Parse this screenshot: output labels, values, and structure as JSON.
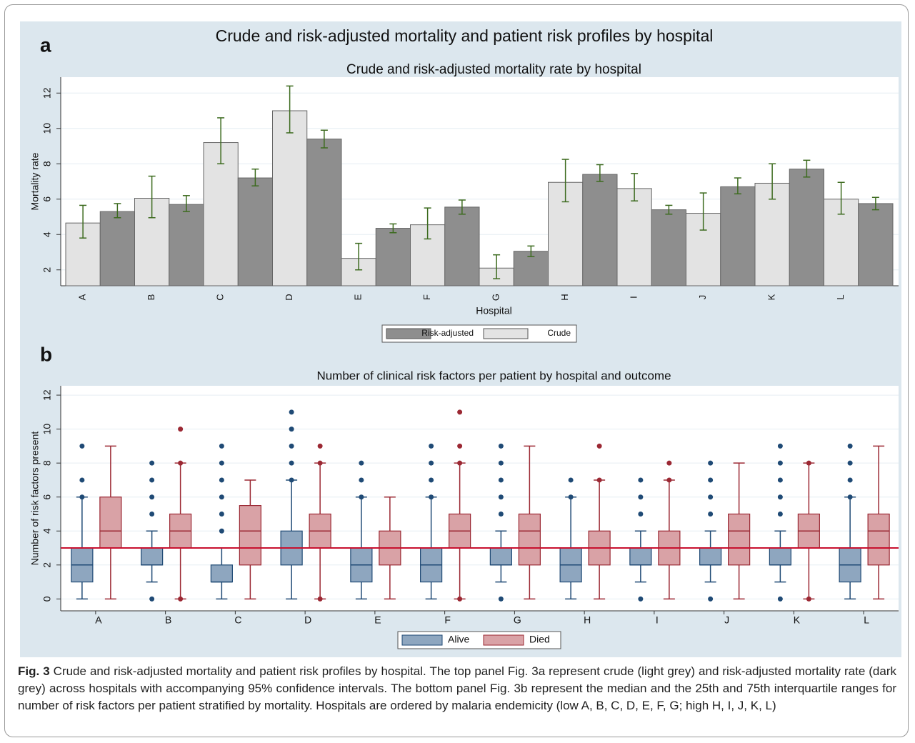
{
  "title": "Crude and risk-adjusted mortality and patient risk profiles by hospital",
  "chart_data": [
    {
      "type": "bar",
      "panel_label": "a",
      "title": "Crude and risk-adjusted mortality rate by hospital",
      "x_label": "Hospital",
      "y_label": "Mortality rate",
      "categories": [
        "A",
        "B",
        "C",
        "D",
        "E",
        "F",
        "G",
        "H",
        "I",
        "J",
        "K",
        "L"
      ],
      "series": [
        {
          "name": "Crude",
          "color": "#e3e3e3",
          "values": [
            4.65,
            6.05,
            9.2,
            11.0,
            2.65,
            4.55,
            2.1,
            6.95,
            6.6,
            5.2,
            6.9,
            6.0
          ],
          "lower": [
            3.8,
            4.95,
            8.0,
            9.75,
            2.0,
            3.75,
            1.5,
            5.85,
            5.9,
            4.25,
            6.0,
            5.15
          ],
          "upper": [
            5.65,
            7.3,
            10.6,
            12.4,
            3.5,
            5.5,
            2.85,
            8.25,
            7.45,
            6.35,
            8.0,
            6.95
          ]
        },
        {
          "name": "Risk-adjusted",
          "color": "#8e8e8e",
          "values": [
            5.3,
            5.7,
            7.2,
            9.4,
            4.35,
            5.55,
            3.05,
            7.4,
            5.4,
            6.7,
            7.7,
            5.75
          ],
          "lower": [
            4.95,
            5.3,
            6.75,
            8.9,
            4.1,
            5.15,
            2.75,
            7.0,
            5.15,
            6.3,
            7.25,
            5.4
          ],
          "upper": [
            5.75,
            6.2,
            7.7,
            9.9,
            4.6,
            5.95,
            3.35,
            7.95,
            5.65,
            7.2,
            8.2,
            6.1
          ]
        }
      ],
      "error_color": "#3d6b1f",
      "ylim": [
        1.1,
        12.9
      ],
      "yticks": [
        2,
        4,
        6,
        8,
        10,
        12
      ],
      "grid": true
    },
    {
      "type": "box",
      "panel_label": "b",
      "title": "Number of clinical risk factors per patient by hospital and outcome",
      "y_label": "Number of risk factors present",
      "categories": [
        "A",
        "B",
        "C",
        "D",
        "E",
        "F",
        "G",
        "H",
        "I",
        "J",
        "K",
        "L"
      ],
      "series": [
        {
          "name": "Alive",
          "color": "#8ea6bf",
          "edge_color": "#1f4a75",
          "whisker_low": [
            0,
            1,
            0,
            0,
            0,
            0,
            1,
            0,
            1,
            1,
            1,
            0
          ],
          "q1": [
            1,
            2,
            1,
            2,
            1,
            1,
            2,
            1,
            2,
            2,
            2,
            1
          ],
          "median": [
            2,
            2,
            1,
            3,
            2,
            2,
            2,
            2,
            2,
            2,
            2,
            2
          ],
          "q3": [
            3,
            3,
            2,
            4,
            3,
            3,
            3,
            3,
            3,
            3,
            3,
            3
          ],
          "whisker_high": [
            6,
            4,
            3,
            7,
            6,
            6,
            4,
            6,
            4,
            4,
            4,
            6
          ],
          "outliers": [
            [
              6,
              7,
              9
            ],
            [
              0,
              5,
              6,
              7,
              8
            ],
            [
              4,
              5,
              6,
              7,
              8,
              9
            ],
            [
              7,
              8,
              9,
              10,
              11
            ],
            [
              6,
              7,
              8
            ],
            [
              6,
              7,
              8,
              9
            ],
            [
              0,
              5,
              6,
              7,
              8,
              9
            ],
            [
              6,
              7
            ],
            [
              0,
              5,
              6,
              7
            ],
            [
              0,
              5,
              6,
              7,
              8
            ],
            [
              0,
              5,
              6,
              7,
              8,
              9
            ],
            [
              6,
              7,
              8,
              9
            ]
          ]
        },
        {
          "name": "Died",
          "color": "#d9a2a6",
          "edge_color": "#9b2833",
          "whisker_low": [
            0,
            0,
            0,
            0,
            0,
            0,
            0,
            0,
            0,
            0,
            0,
            0
          ],
          "q1": [
            3,
            3,
            2,
            3,
            2,
            3,
            2,
            2,
            2,
            2,
            3,
            2
          ],
          "median": [
            4,
            4,
            4,
            4,
            3,
            4,
            4,
            3,
            3,
            4,
            4,
            4
          ],
          "q3": [
            6,
            5,
            5.5,
            5,
            4,
            5,
            5,
            4,
            4,
            5,
            5,
            5
          ],
          "whisker_high": [
            9,
            8,
            7,
            8,
            6,
            8,
            9,
            7,
            7,
            8,
            8,
            9
          ],
          "outliers": [
            [],
            [
              0,
              8,
              10
            ],
            [],
            [
              0,
              8,
              9
            ],
            [],
            [
              0,
              8,
              9,
              11
            ],
            [],
            [
              7,
              9
            ],
            [
              7,
              8
            ],
            [],
            [
              0,
              8
            ],
            []
          ]
        }
      ],
      "reference_line": 3,
      "reference_color": "#c8102e",
      "ylim": [
        -0.7,
        12.55
      ],
      "yticks": [
        0,
        2,
        4,
        6,
        8,
        10,
        12
      ],
      "grid": true
    }
  ],
  "caption": {
    "label": "Fig. 3",
    "text": " Crude and risk-adjusted mortality and patient risk profiles by hospital. The top panel Fig. 3a represent crude (light grey) and risk-adjusted mortality rate (dark grey) across hospitals with accompanying 95% confidence intervals. The bottom panel Fig. 3b represent the median and the 25th and 75th interquartile ranges for number of risk factors per patient stratified by mortality. Hospitals are ordered by malaria endemicity (low A, B, C, D, E, F, G; high H, I, J, K, L)"
  }
}
